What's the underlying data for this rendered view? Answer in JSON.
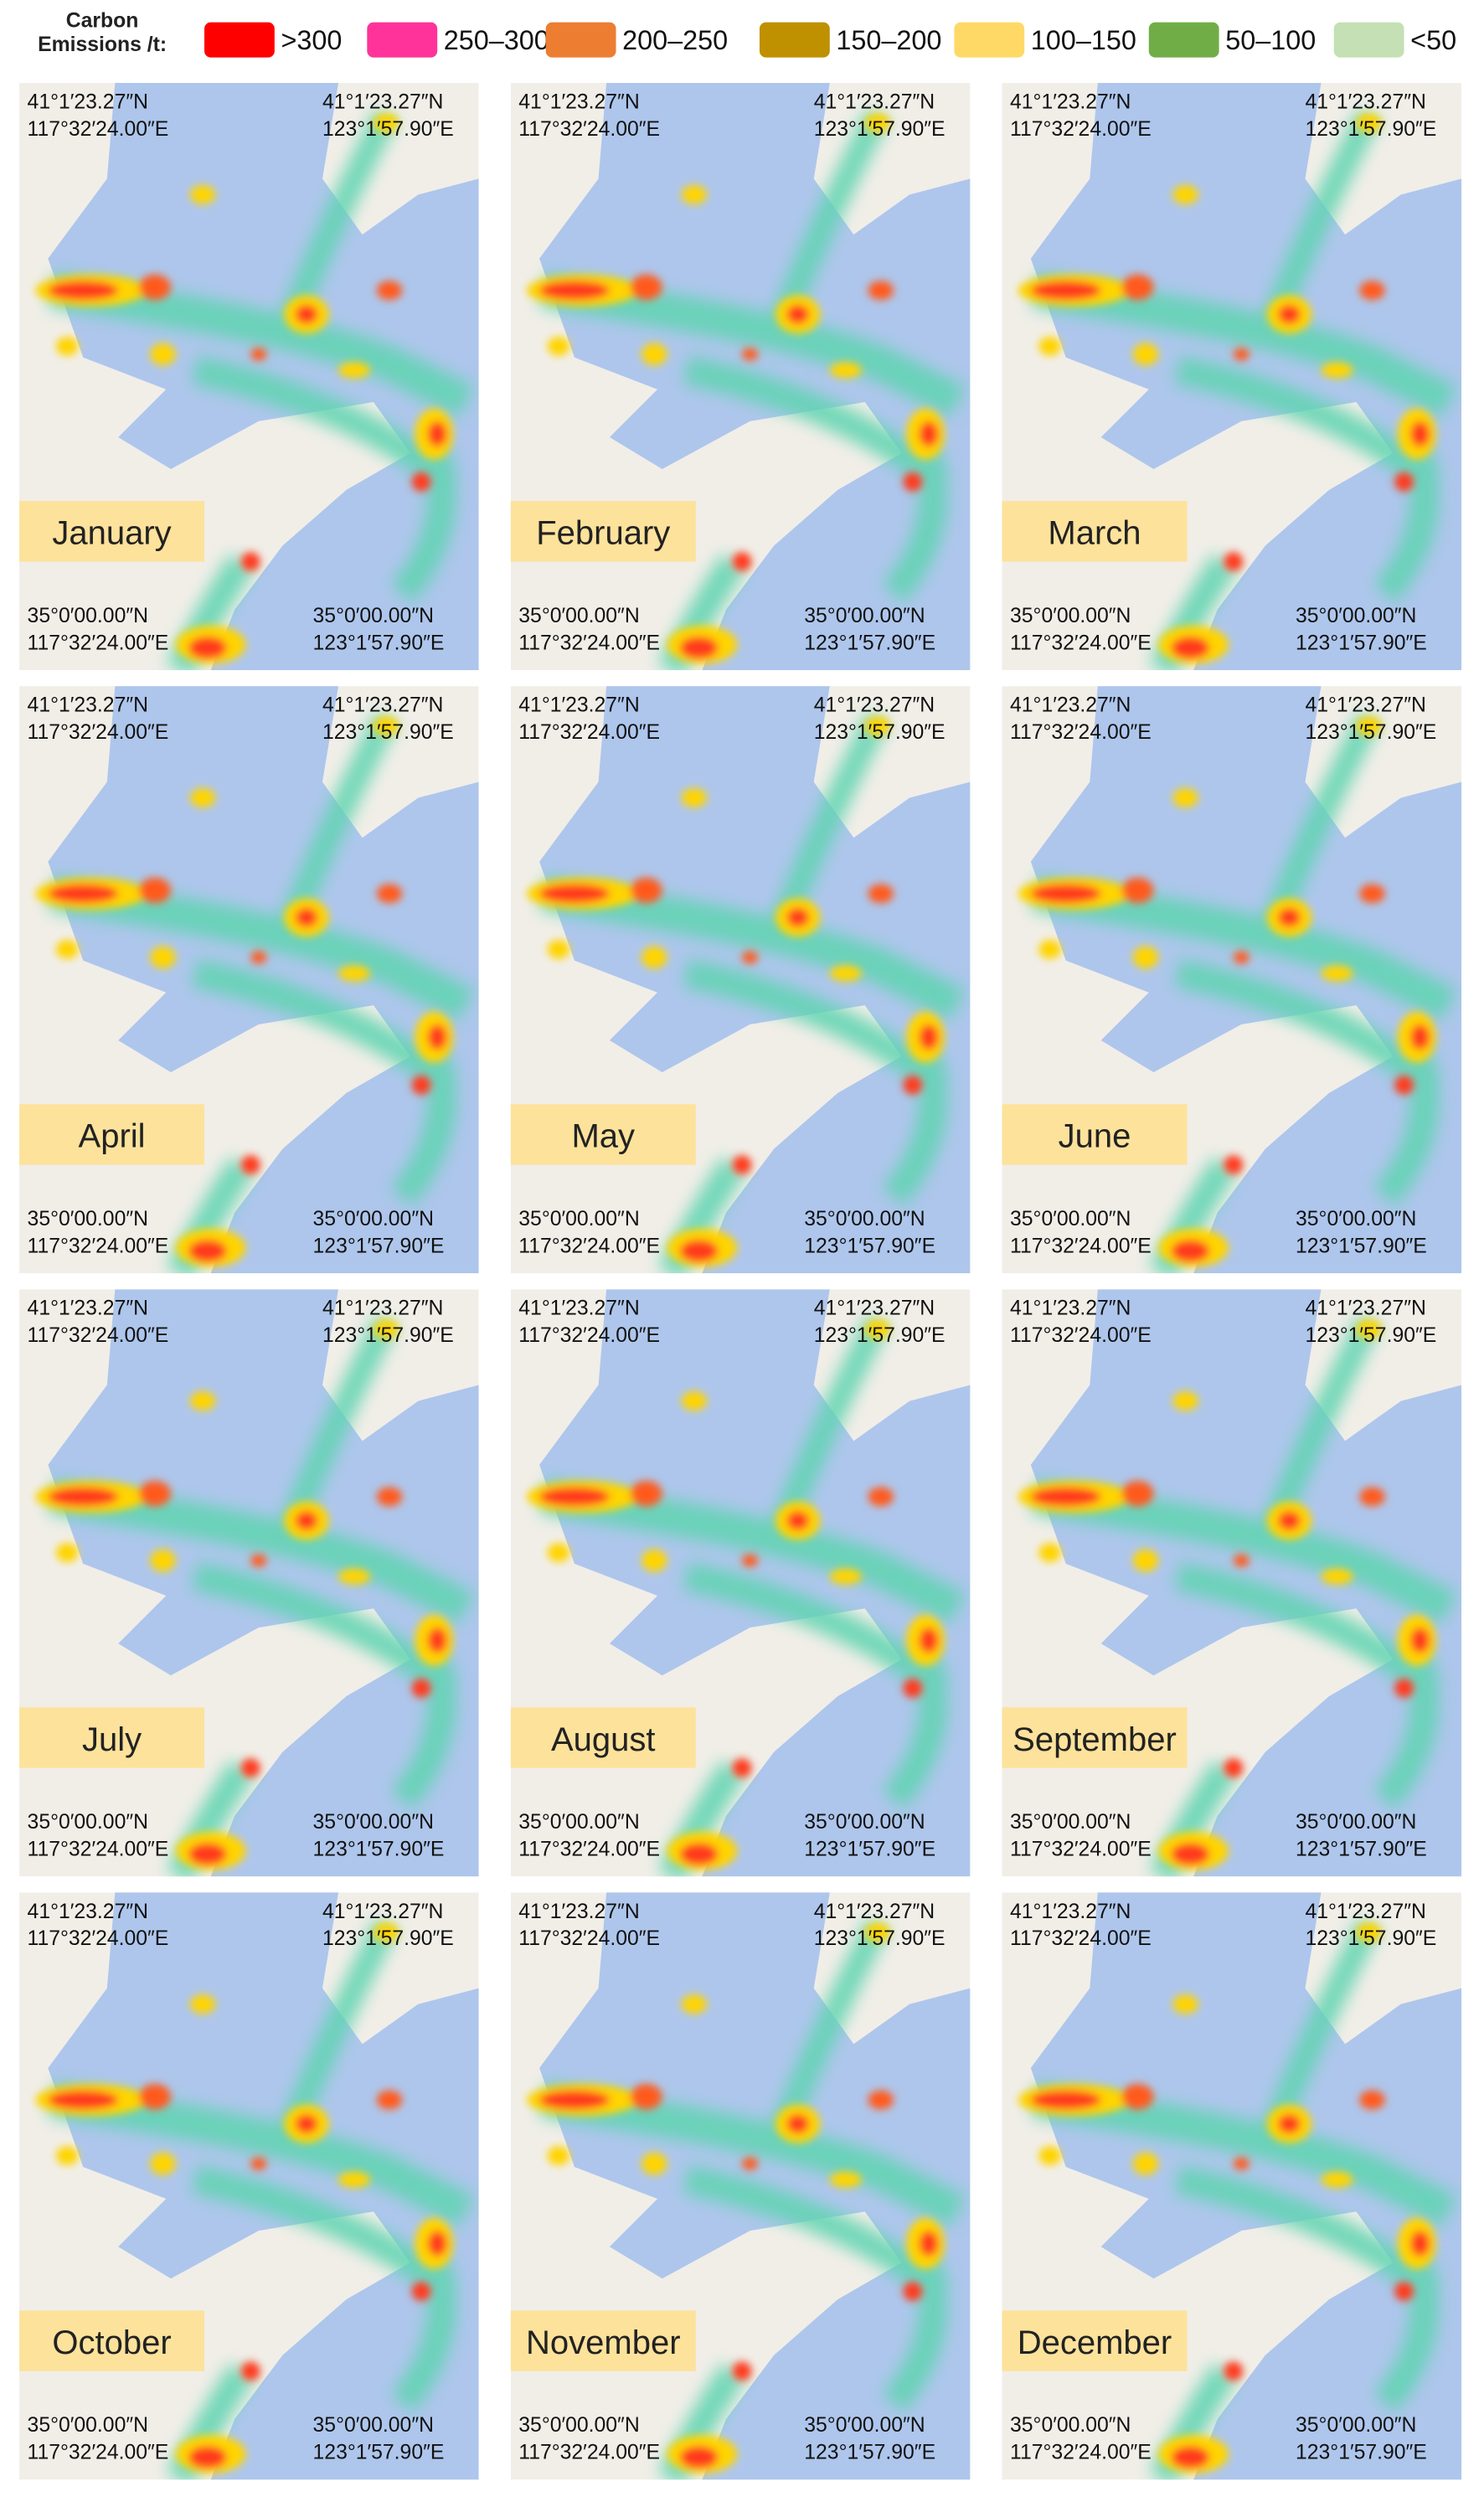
{
  "legend": {
    "title": [
      "Carbon",
      "Emissions /t:"
    ],
    "items": [
      {
        "label": ">300",
        "color": "#ff0000"
      },
      {
        "label": "250–300",
        "color": "#ff3399"
      },
      {
        "label": "200–250",
        "color": "#ed7d31"
      },
      {
        "label": "150–200",
        "color": "#bf9000"
      },
      {
        "label": "100–150",
        "color": "#ffd966"
      },
      {
        "label": "50–100",
        "color": "#70ad47"
      },
      {
        "label": "<50",
        "color": "#c5e0b4"
      }
    ]
  },
  "corners": {
    "top_left": [
      "41°1′23.27″N",
      "117°32′24.00″E"
    ],
    "top_right": [
      "41°1′23.27″N",
      "123°1′57.90″E"
    ],
    "bottom_left": [
      "35°0′00.00″N",
      "117°32′24.00″E"
    ],
    "bottom_right": [
      "35°0′00.00″N",
      "123°1′57.90″E"
    ]
  },
  "panels": [
    {
      "month": "January"
    },
    {
      "month": "February"
    },
    {
      "month": "March"
    },
    {
      "month": "April"
    },
    {
      "month": "May"
    },
    {
      "month": "June"
    },
    {
      "month": "July"
    },
    {
      "month": "August"
    },
    {
      "month": "September"
    },
    {
      "month": "October"
    },
    {
      "month": "November"
    },
    {
      "month": "December"
    }
  ]
}
